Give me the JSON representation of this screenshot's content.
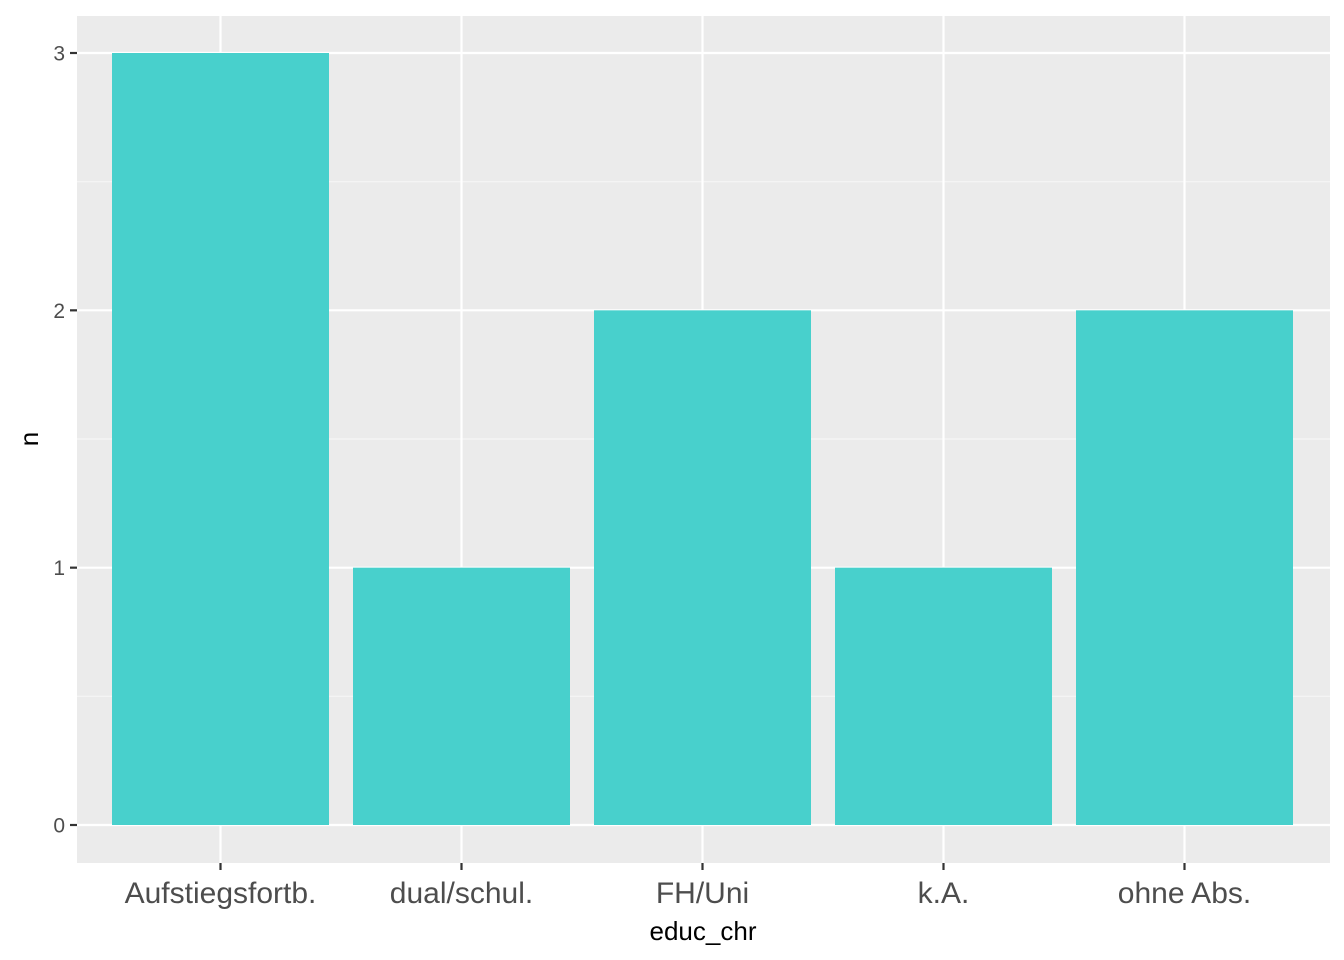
{
  "chart_data": {
    "type": "bar",
    "categories": [
      "Aufstiegsfortb.",
      "dual/schul.",
      "FH/Uni",
      "k.A.",
      "ohne Abs."
    ],
    "values": [
      3,
      1,
      2,
      1,
      2
    ],
    "xlabel": "educ_chr",
    "ylabel": "n",
    "ylim": [
      0,
      3
    ],
    "yticks": [
      0,
      1,
      2,
      3
    ],
    "grid": true,
    "colors": {
      "bar": "#48D0CC",
      "panel": "#EBEBEB",
      "grid_major": "#FFFFFF",
      "grid_minor": "#F5F5F5",
      "tick": "#333333"
    }
  }
}
